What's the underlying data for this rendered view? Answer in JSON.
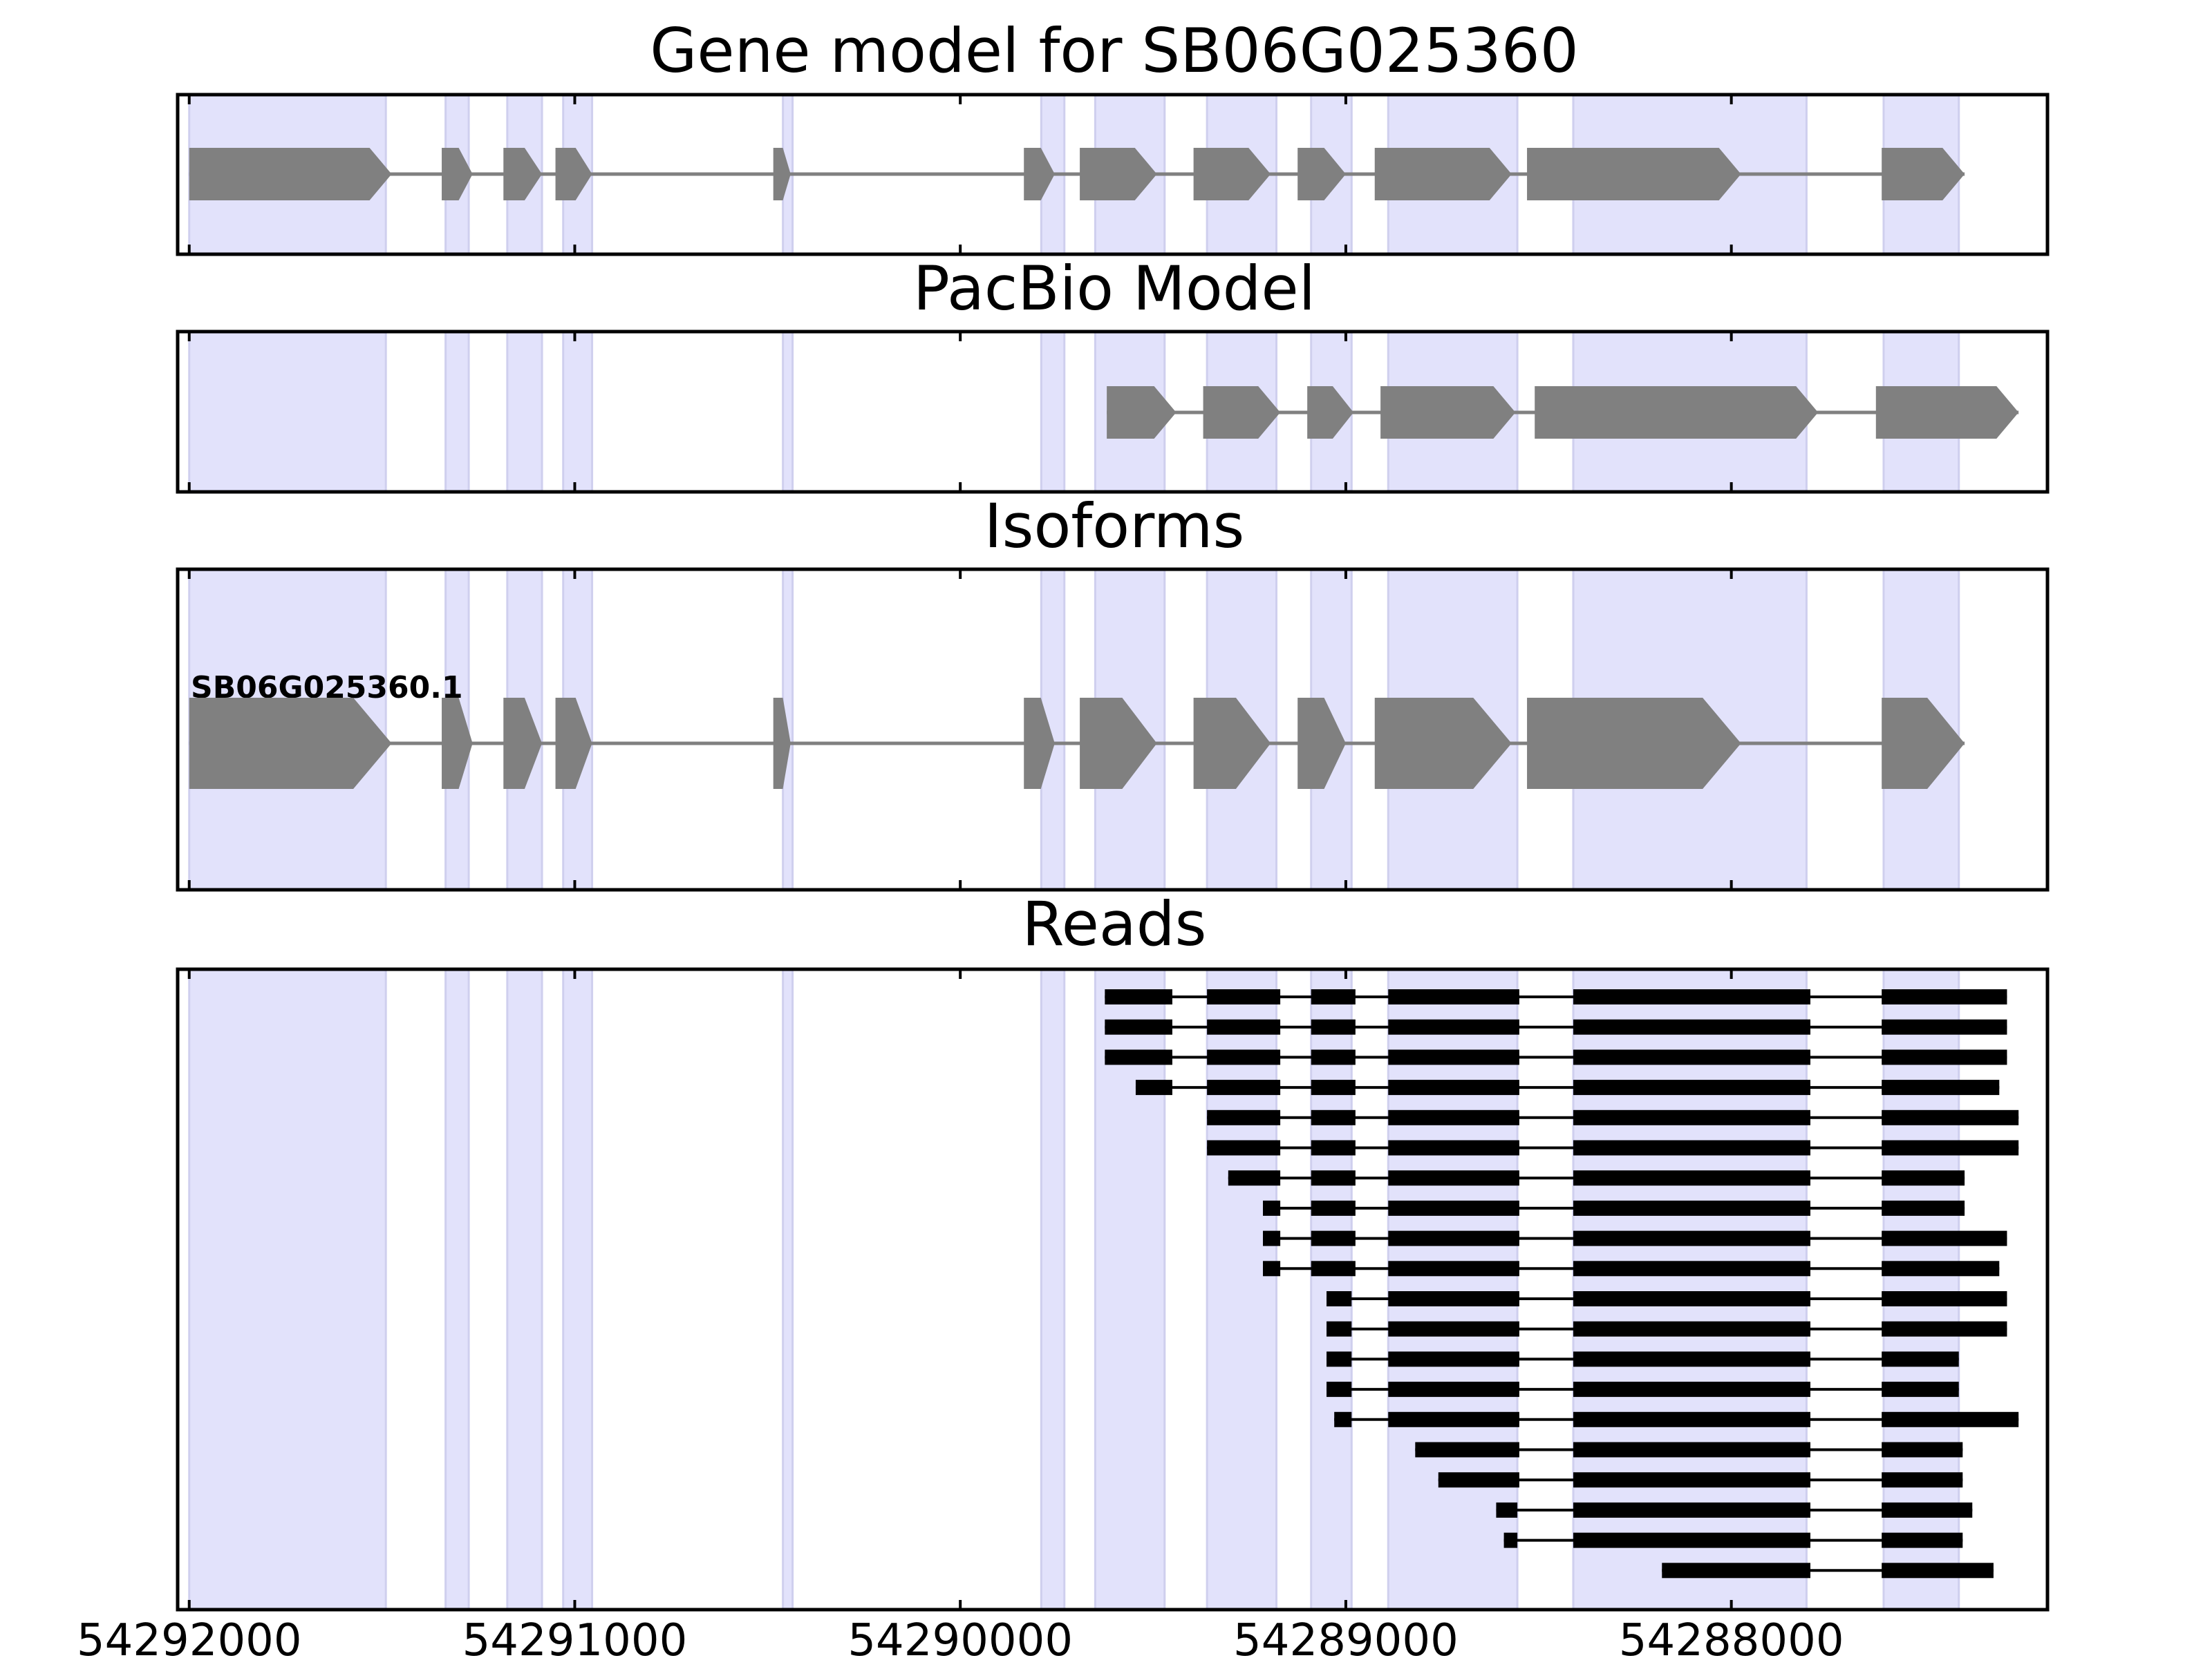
{
  "chart_data": {
    "type": "gene-track",
    "xlim": [
      54292030,
      54287180
    ],
    "xticks": [
      54292000,
      54291000,
      54290000,
      54289000,
      54288000
    ],
    "tick_labels": [
      "54292000",
      "54291000",
      "54290000",
      "54289000",
      "54288000"
    ],
    "bands": [
      [
        54292000,
        54291490
      ],
      [
        54291335,
        54291275
      ],
      [
        54291175,
        54291085
      ],
      [
        54291030,
        54290955
      ],
      [
        54290460,
        54290435
      ],
      [
        54289790,
        54289730
      ],
      [
        54289650,
        54289470
      ],
      [
        54289360,
        54289180
      ],
      [
        54289090,
        54288985
      ],
      [
        54288890,
        54288555
      ],
      [
        54288410,
        54287805
      ],
      [
        54287605,
        54287410
      ]
    ],
    "panels": [
      {
        "title": "Gene model for SB06G025360",
        "exons": [
          [
            54292000,
            54291475
          ],
          [
            54291345,
            54291265
          ],
          [
            54291185,
            54291085
          ],
          [
            54291050,
            54290955
          ],
          [
            54290485,
            54290440
          ],
          [
            54289835,
            54289755
          ],
          [
            54289690,
            54289490
          ],
          [
            54289395,
            54289195
          ],
          [
            54289125,
            54289000
          ],
          [
            54288925,
            54288570
          ],
          [
            54288530,
            54287975
          ],
          [
            54287610,
            54287395
          ]
        ]
      },
      {
        "title": "PacBio Model",
        "exons": [
          [
            54289620,
            54289440
          ],
          [
            54289370,
            54289170
          ],
          [
            54289100,
            54288980
          ],
          [
            54288910,
            54288560
          ],
          [
            54288510,
            54287775
          ],
          [
            54287625,
            54287255
          ]
        ]
      },
      {
        "title": "Isoforms",
        "isoform_label": "SB06G025360.1",
        "exons": [
          [
            54292000,
            54291475
          ],
          [
            54291345,
            54291265
          ],
          [
            54291185,
            54291085
          ],
          [
            54291050,
            54290955
          ],
          [
            54290485,
            54290440
          ],
          [
            54289835,
            54289755
          ],
          [
            54289690,
            54289490
          ],
          [
            54289395,
            54289195
          ],
          [
            54289125,
            54289000
          ],
          [
            54288925,
            54288570
          ],
          [
            54288530,
            54287975
          ],
          [
            54287610,
            54287395
          ]
        ]
      },
      {
        "title": "Reads",
        "reads": [
          [
            [
              54289625,
              54289450
            ],
            [
              54289360,
              54289170
            ],
            [
              54289090,
              54288975
            ],
            [
              54288890,
              54288550
            ],
            [
              54288410,
              54287795
            ],
            [
              54287610,
              54287285
            ]
          ],
          [
            [
              54289625,
              54289450
            ],
            [
              54289360,
              54289170
            ],
            [
              54289090,
              54288975
            ],
            [
              54288890,
              54288550
            ],
            [
              54288410,
              54287795
            ],
            [
              54287610,
              54287285
            ]
          ],
          [
            [
              54289625,
              54289450
            ],
            [
              54289360,
              54289170
            ],
            [
              54289090,
              54288975
            ],
            [
              54288890,
              54288550
            ],
            [
              54288410,
              54287795
            ],
            [
              54287610,
              54287285
            ]
          ],
          [
            [
              54289545,
              54289450
            ],
            [
              54289360,
              54289170
            ],
            [
              54289090,
              54288975
            ],
            [
              54288890,
              54288550
            ],
            [
              54288410,
              54287795
            ],
            [
              54287610,
              54287305
            ]
          ],
          [
            [
              54289360,
              54289170
            ],
            [
              54289090,
              54288975
            ],
            [
              54288890,
              54288550
            ],
            [
              54288410,
              54287795
            ],
            [
              54287610,
              54287255
            ]
          ],
          [
            [
              54289360,
              54289170
            ],
            [
              54289090,
              54288975
            ],
            [
              54288890,
              54288550
            ],
            [
              54288410,
              54287795
            ],
            [
              54287610,
              54287255
            ]
          ],
          [
            [
              54289305,
              54289170
            ],
            [
              54289090,
              54288975
            ],
            [
              54288890,
              54288550
            ],
            [
              54288410,
              54287795
            ],
            [
              54287610,
              54287395
            ]
          ],
          [
            [
              54289215,
              54289170
            ],
            [
              54289090,
              54288975
            ],
            [
              54288890,
              54288550
            ],
            [
              54288410,
              54287795
            ],
            [
              54287610,
              54287395
            ]
          ],
          [
            [
              54289215,
              54289170
            ],
            [
              54289090,
              54288975
            ],
            [
              54288890,
              54288550
            ],
            [
              54288410,
              54287795
            ],
            [
              54287610,
              54287285
            ]
          ],
          [
            [
              54289215,
              54289170
            ],
            [
              54289090,
              54288975
            ],
            [
              54288890,
              54288550
            ],
            [
              54288410,
              54287795
            ],
            [
              54287610,
              54287305
            ]
          ],
          [
            [
              54289050,
              54288985
            ],
            [
              54288890,
              54288550
            ],
            [
              54288410,
              54287795
            ],
            [
              54287610,
              54287285
            ]
          ],
          [
            [
              54289050,
              54288985
            ],
            [
              54288890,
              54288550
            ],
            [
              54288410,
              54287795
            ],
            [
              54287610,
              54287285
            ]
          ],
          [
            [
              54289050,
              54288985
            ],
            [
              54288890,
              54288550
            ],
            [
              54288410,
              54287795
            ],
            [
              54287610,
              54287410
            ]
          ],
          [
            [
              54289050,
              54288985
            ],
            [
              54288890,
              54288550
            ],
            [
              54288410,
              54287795
            ],
            [
              54287610,
              54287410
            ]
          ],
          [
            [
              54289030,
              54288985
            ],
            [
              54288890,
              54288550
            ],
            [
              54288410,
              54287795
            ],
            [
              54287610,
              54287255
            ]
          ],
          [
            [
              54288820,
              54288550
            ],
            [
              54288410,
              54287795
            ],
            [
              54287610,
              54287400
            ]
          ],
          [
            [
              54288760,
              54288550
            ],
            [
              54288410,
              54287795
            ],
            [
              54287610,
              54287400
            ]
          ],
          [
            [
              54288610,
              54288555
            ],
            [
              54288410,
              54287795
            ],
            [
              54287610,
              54287375
            ]
          ],
          [
            [
              54288590,
              54288555
            ],
            [
              54288410,
              54287795
            ],
            [
              54287610,
              54287400
            ]
          ],
          [
            [
              54288180,
              54287795
            ],
            [
              54287610,
              54287320
            ]
          ]
        ]
      }
    ]
  }
}
